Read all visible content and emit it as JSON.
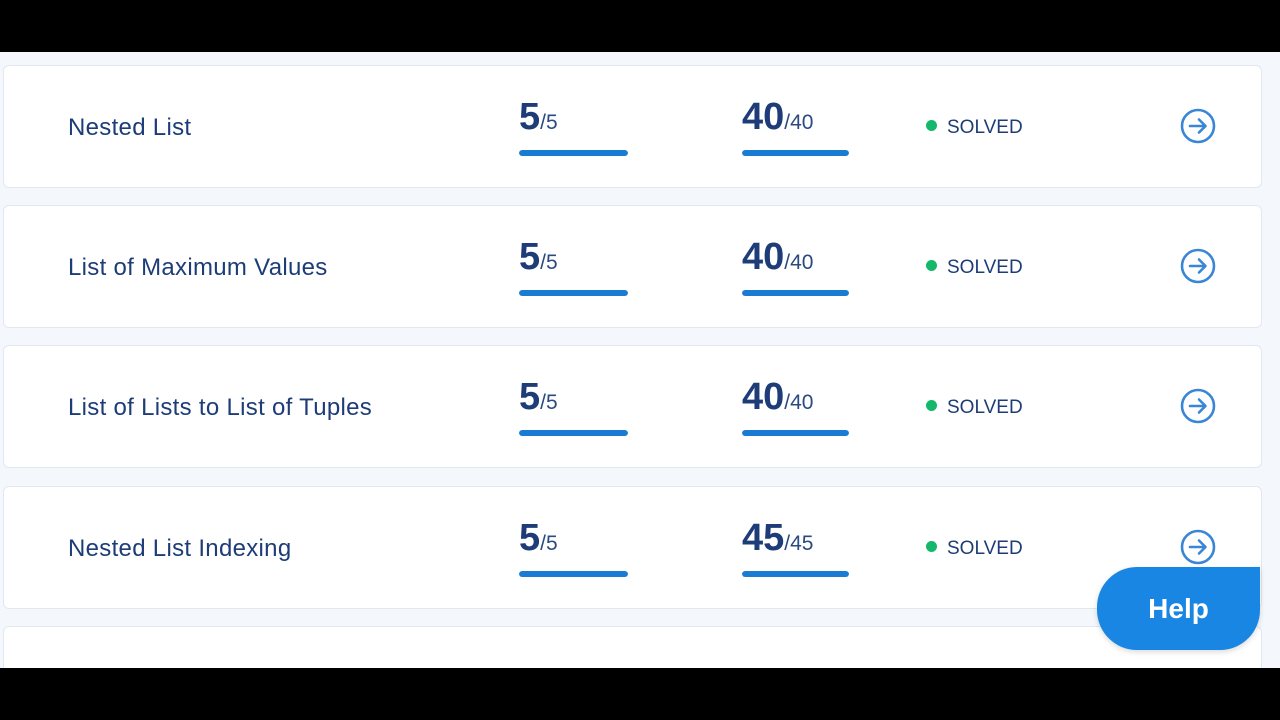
{
  "rows": [
    {
      "title": "Nested List",
      "tests_passed": "5",
      "tests_total": "/5",
      "tests_fraction": 1.0,
      "score": "40",
      "score_total": "/40",
      "score_fraction": 1.0,
      "status": "SOLVED"
    },
    {
      "title": "List of Maximum Values",
      "tests_passed": "5",
      "tests_total": "/5",
      "tests_fraction": 1.0,
      "score": "40",
      "score_total": "/40",
      "score_fraction": 1.0,
      "status": "SOLVED"
    },
    {
      "title": "List of Lists to List of Tuples",
      "tests_passed": "5",
      "tests_total": "/5",
      "tests_fraction": 1.0,
      "score": "40",
      "score_total": "/40",
      "score_fraction": 1.0,
      "status": "SOLVED"
    },
    {
      "title": "Nested List Indexing",
      "tests_passed": "5",
      "tests_total": "/5",
      "tests_fraction": 1.0,
      "score": "45",
      "score_total": "/45",
      "score_fraction": 1.0,
      "status": "SOLVED"
    }
  ],
  "icons": {
    "row_action": "arrow-right-circle-icon",
    "status": "status-dot-icon"
  },
  "colors": {
    "accent": "#1a7bd3",
    "title": "#1d3c78",
    "solved": "#14b86a",
    "help": "#1a86e3"
  },
  "help_label": "Help"
}
